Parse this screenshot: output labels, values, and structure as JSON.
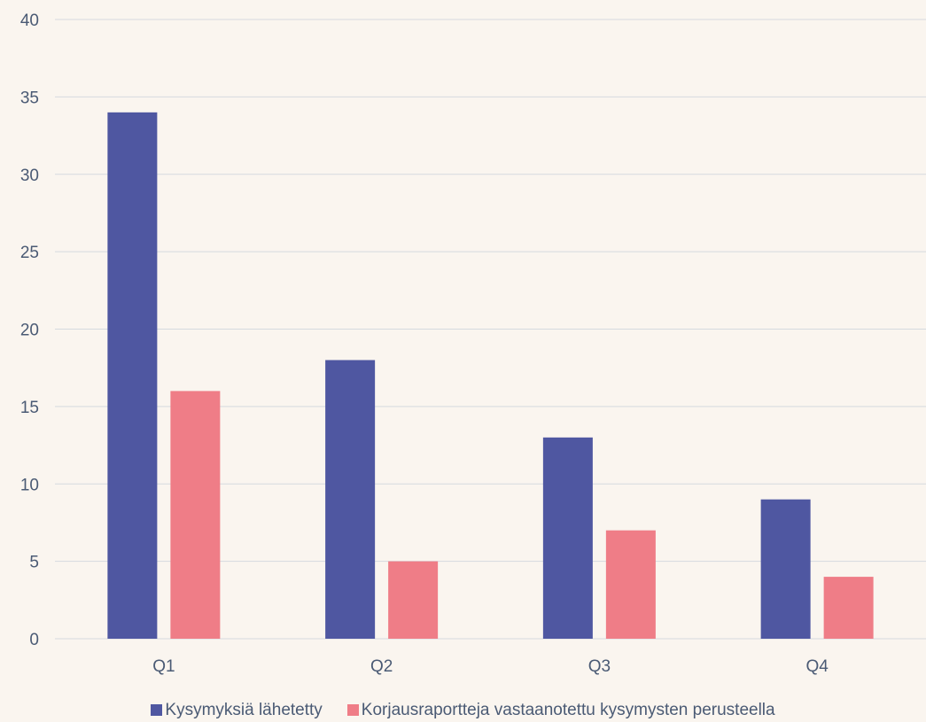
{
  "chart_data": {
    "type": "bar",
    "categories": [
      "Q1",
      "Q2",
      "Q3",
      "Q4"
    ],
    "series": [
      {
        "name": "Kysymyksiä lähetetty",
        "values": [
          34,
          18,
          13,
          9
        ],
        "color": "#4F57A1"
      },
      {
        "name": "Korjausraportteja vastaanotettu kysymysten perusteella",
        "values": [
          16,
          5,
          7,
          4
        ],
        "color": "#EF7D87"
      }
    ],
    "ylim": [
      0,
      40
    ],
    "yticks": [
      0,
      5,
      10,
      15,
      20,
      25,
      30,
      35,
      40
    ],
    "grid": true,
    "legend_position": "bottom",
    "background": "#FAF5EF",
    "gridline_color": "#D5D9DF",
    "text_color": "#4A5A74"
  }
}
